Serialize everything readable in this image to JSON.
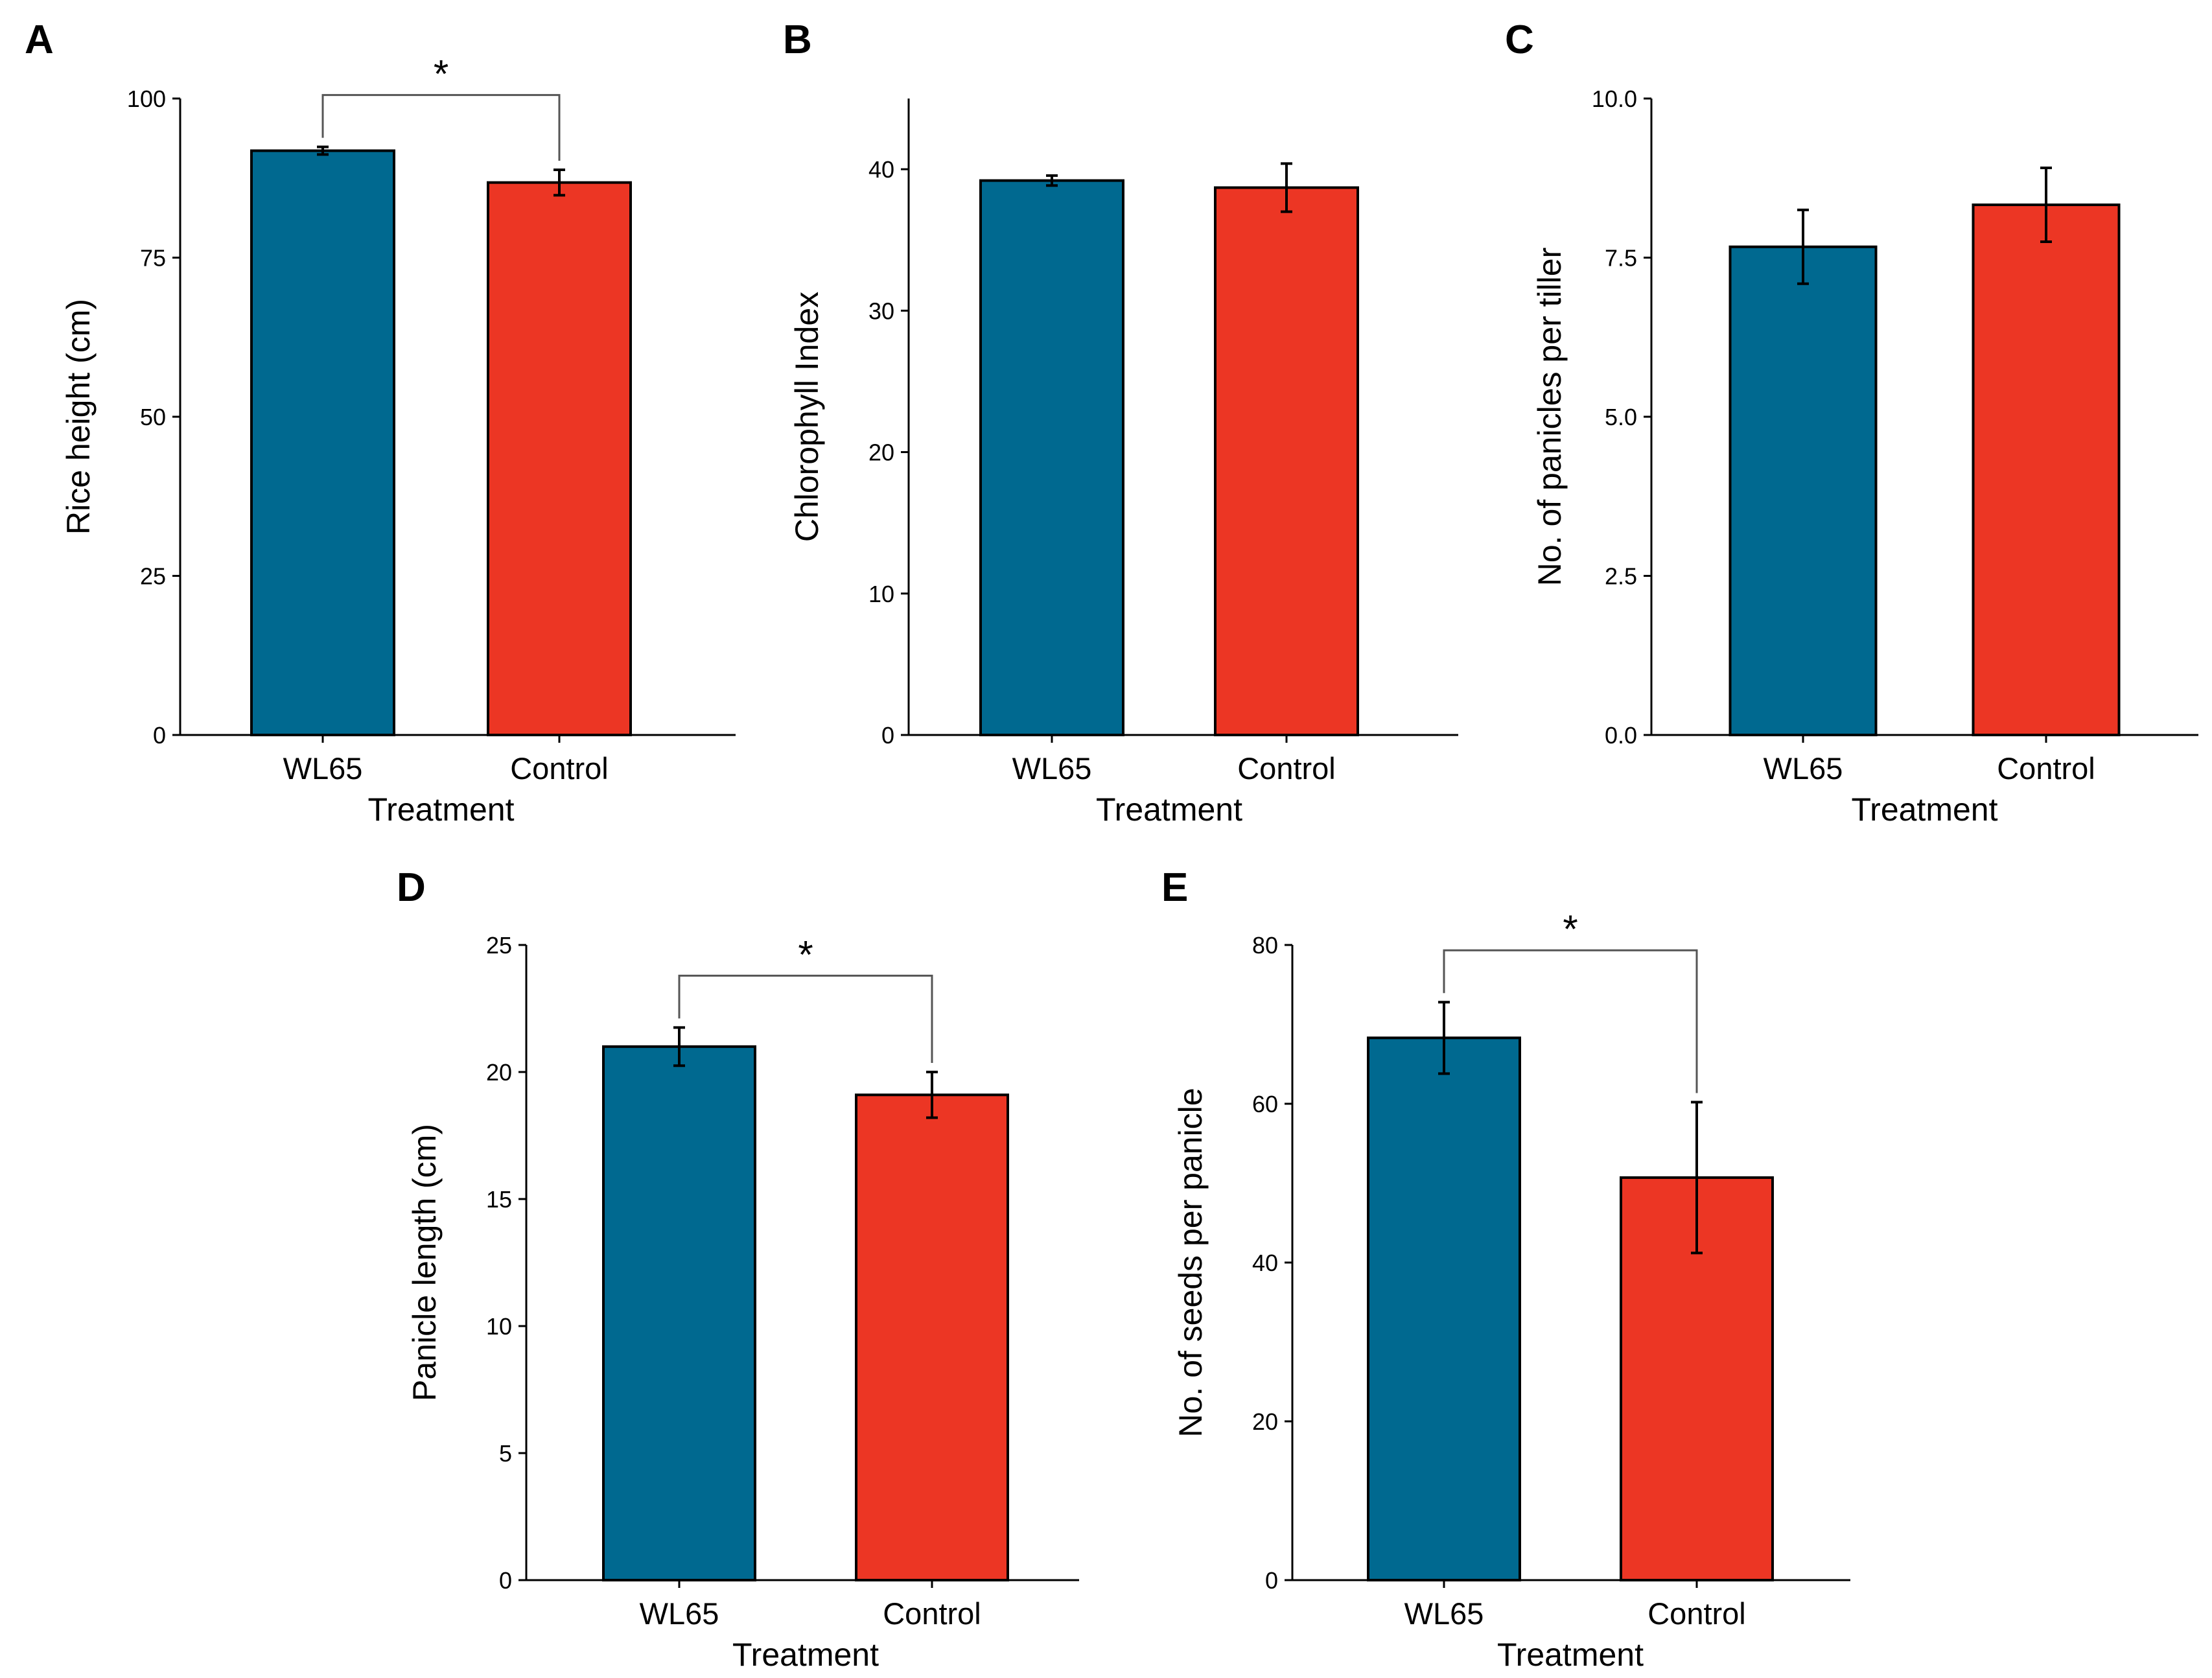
{
  "figure": {
    "colors": {
      "WL65": "#006990",
      "Control": "#EC3624",
      "axis": "#000000",
      "bracket": "#555555"
    }
  },
  "chart_data": [
    {
      "id": "A",
      "letter": "A",
      "type": "bar",
      "categories": [
        "WL65",
        "Control"
      ],
      "values": [
        91.8,
        86.8
      ],
      "errors": [
        0.6,
        2.0
      ],
      "xlabel": "Treatment",
      "ylabel": "Rice height (cm)",
      "ylim": [
        0,
        100
      ],
      "yticks": [
        0,
        25,
        50,
        75,
        100
      ],
      "ytick_labels": [
        "0",
        "25",
        "50",
        "75",
        "100"
      ],
      "significance": {
        "label": "*",
        "pair": [
          "WL65",
          "Control"
        ]
      }
    },
    {
      "id": "B",
      "letter": "B",
      "type": "bar",
      "categories": [
        "WL65",
        "Control"
      ],
      "values": [
        39.2,
        38.7
      ],
      "errors": [
        0.35,
        1.7
      ],
      "xlabel": "Treatment",
      "ylabel": "Chlorophyll Index",
      "ylim": [
        0,
        45
      ],
      "yticks": [
        0,
        10,
        20,
        30,
        40
      ],
      "ytick_labels": [
        "0",
        "10",
        "20",
        "30",
        "40"
      ],
      "significance": null
    },
    {
      "id": "C",
      "letter": "C",
      "type": "bar",
      "categories": [
        "WL65",
        "Control"
      ],
      "values": [
        7.67,
        8.33
      ],
      "errors": [
        0.58,
        0.58
      ],
      "xlabel": "Treatment",
      "ylabel": "No. of panicles per tiller",
      "ylim": [
        0,
        10
      ],
      "yticks": [
        0,
        2.5,
        5,
        7.5,
        10
      ],
      "ytick_labels": [
        "0.0",
        "2.5",
        "5.0",
        "7.5",
        "10.0"
      ],
      "significance": null
    },
    {
      "id": "D",
      "letter": "D",
      "type": "bar",
      "categories": [
        "WL65",
        "Control"
      ],
      "values": [
        21.0,
        19.1
      ],
      "errors": [
        0.75,
        0.9
      ],
      "xlabel": "Treatment",
      "ylabel": "Panicle length (cm)",
      "ylim": [
        0,
        25
      ],
      "yticks": [
        0,
        5,
        10,
        15,
        20,
        25
      ],
      "ytick_labels": [
        "0",
        "5",
        "10",
        "15",
        "20",
        "25"
      ],
      "significance": {
        "label": "*",
        "pair": [
          "WL65",
          "Control"
        ]
      }
    },
    {
      "id": "E",
      "letter": "E",
      "type": "bar",
      "categories": [
        "WL65",
        "Control"
      ],
      "values": [
        68.3,
        50.7
      ],
      "errors": [
        4.5,
        9.5
      ],
      "xlabel": "Treatment",
      "ylabel": "No. of seeds per panicle",
      "ylim": [
        0,
        80
      ],
      "yticks": [
        0,
        20,
        40,
        60,
        80
      ],
      "ytick_labels": [
        "0",
        "20",
        "40",
        "60",
        "80"
      ],
      "significance": {
        "label": "*",
        "pair": [
          "WL65",
          "Control"
        ]
      }
    }
  ]
}
